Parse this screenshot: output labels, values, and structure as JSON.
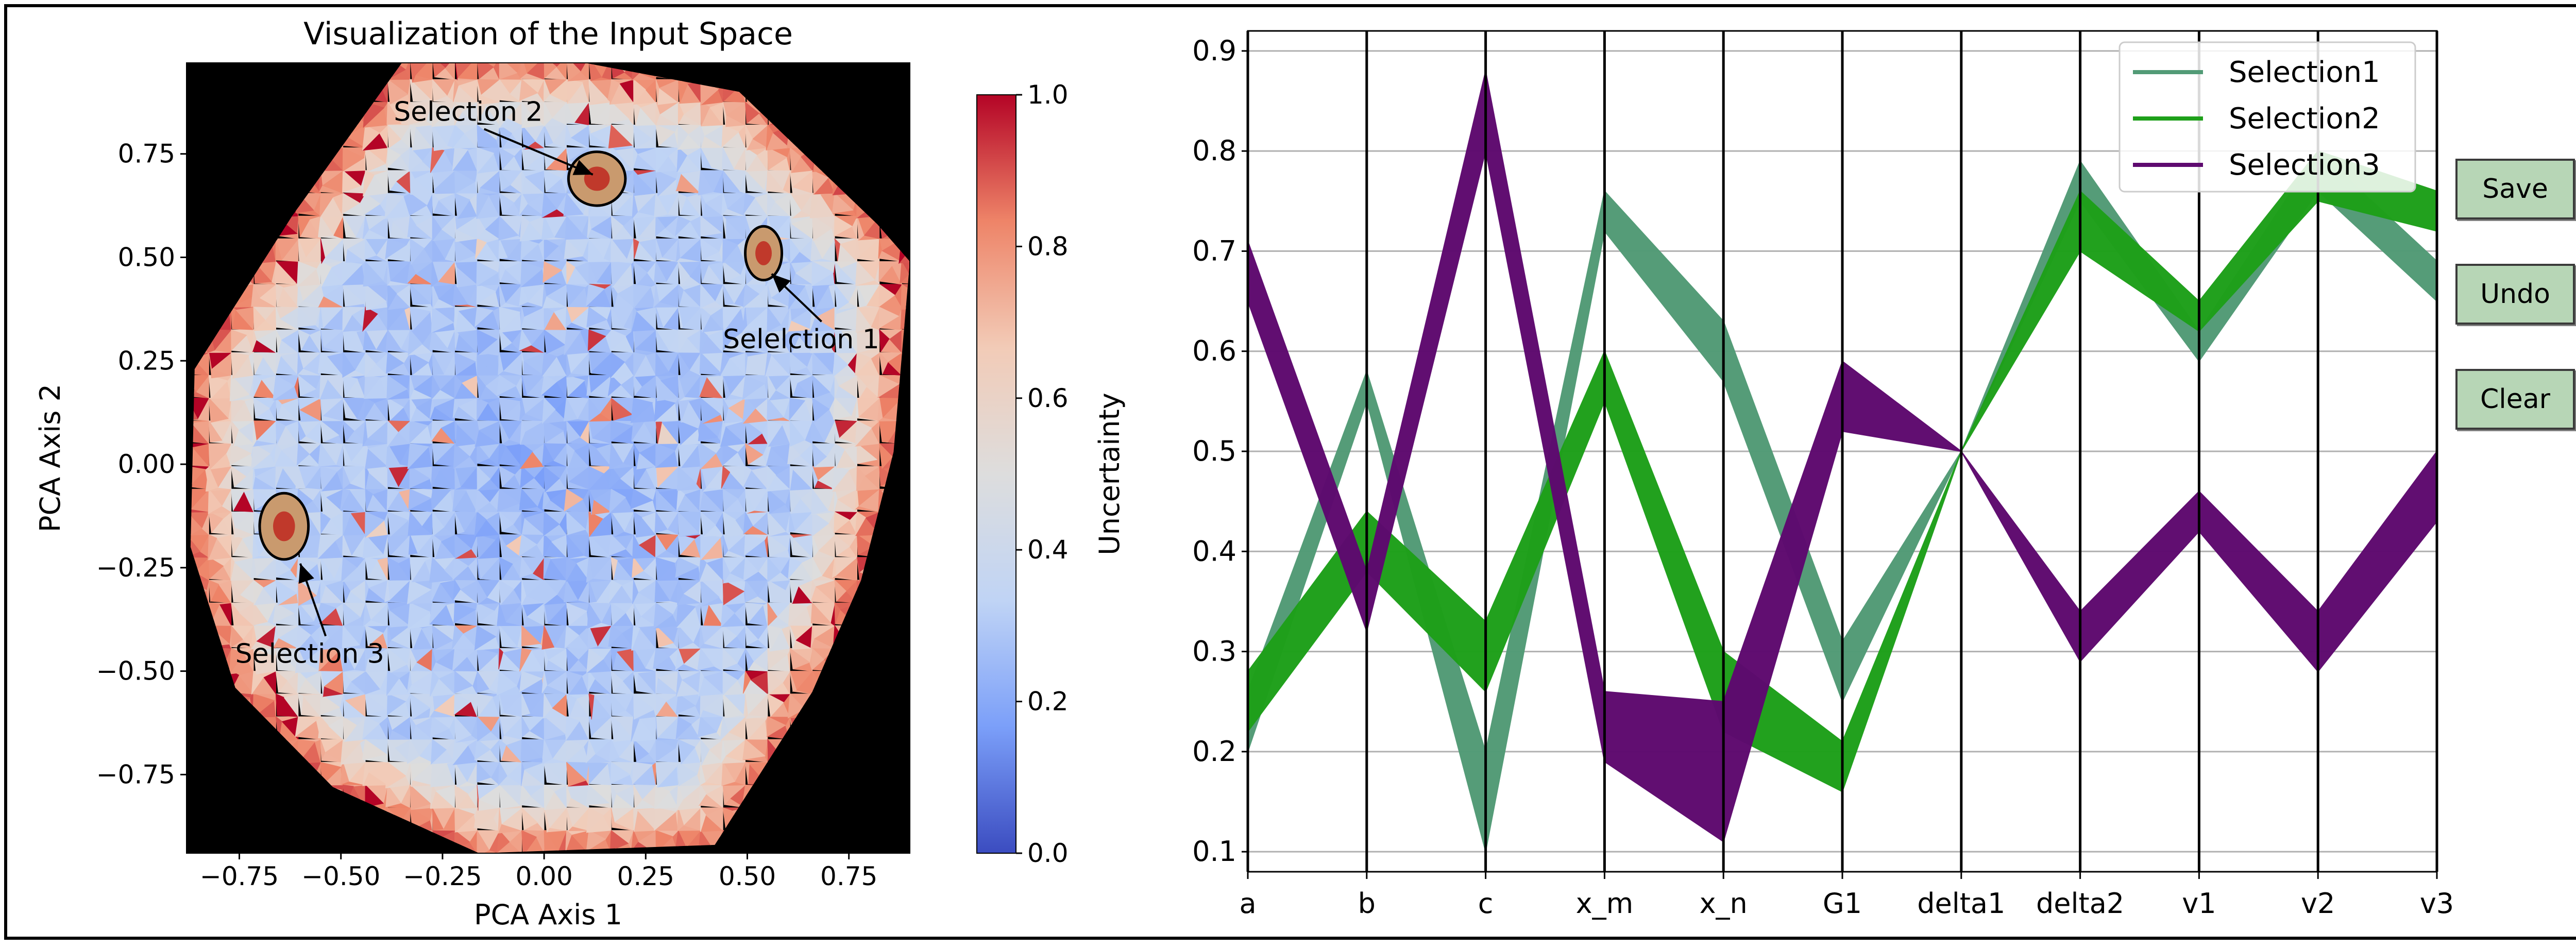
{
  "chart_data": [
    {
      "type": "heatmap",
      "title": "Visualization of the Input Space",
      "xlabel": "PCA Axis 1",
      "ylabel": "PCA Axis 2",
      "xlim": [
        -0.88,
        0.9
      ],
      "ylim": [
        -0.94,
        0.97
      ],
      "x_ticks": [
        -0.75,
        -0.5,
        -0.25,
        0.0,
        0.25,
        0.5,
        0.75
      ],
      "x_tick_labels": [
        "−0.75",
        "−0.50",
        "−0.25",
        "0.00",
        "0.25",
        "0.50",
        "0.75"
      ],
      "y_ticks": [
        -0.75,
        -0.5,
        -0.25,
        0.0,
        0.25,
        0.5,
        0.75
      ],
      "y_tick_labels": [
        "−0.75",
        "−0.50",
        "−0.25",
        "0.00",
        "0.25",
        "0.50",
        "0.75"
      ],
      "colorbar": {
        "label": "Uncertainty",
        "range": [
          0.0,
          1.0
        ],
        "ticks": [
          0.0,
          0.2,
          0.4,
          0.6,
          0.8,
          1.0
        ],
        "tick_labels": [
          "0.0",
          "0.2",
          "0.4",
          "0.6",
          "0.8",
          "1.0"
        ],
        "colormap": "coolwarm",
        "colors": [
          "#3b4cc0",
          "#7b9ff9",
          "#c0d4f5",
          "#dddddd",
          "#f2cbb7",
          "#ee8468",
          "#b40426"
        ]
      },
      "background_color": "#000000",
      "hull": [
        [
          -0.35,
          0.97
        ],
        [
          0.1,
          0.97
        ],
        [
          0.48,
          0.9
        ],
        [
          0.82,
          0.58
        ],
        [
          0.9,
          0.49
        ],
        [
          0.86,
          0.03
        ],
        [
          0.78,
          -0.28
        ],
        [
          0.66,
          -0.55
        ],
        [
          0.42,
          -0.92
        ],
        [
          -0.16,
          -0.94
        ],
        [
          -0.52,
          -0.78
        ],
        [
          -0.76,
          -0.54
        ],
        [
          -0.87,
          -0.2
        ],
        [
          -0.86,
          0.23
        ],
        [
          -0.62,
          0.6
        ]
      ],
      "annotations": [
        {
          "text": "Selection 2",
          "text_at": [
            -0.37,
            0.83
          ],
          "arrow_to": [
            0.12,
            0.7
          ]
        },
        {
          "text": "Selelction 1",
          "text_at": [
            0.44,
            0.28
          ],
          "arrow_to": [
            0.56,
            0.46
          ]
        },
        {
          "text": "Selection 3",
          "text_at": [
            -0.76,
            -0.48
          ],
          "arrow_to": [
            -0.6,
            -0.24
          ]
        }
      ],
      "selection_regions": [
        {
          "name": "Selection 2",
          "center": [
            0.13,
            0.69
          ],
          "radius": [
            0.07,
            0.065
          ]
        },
        {
          "name": "Selelction 1",
          "center": [
            0.54,
            0.51
          ],
          "radius": [
            0.045,
            0.065
          ]
        },
        {
          "name": "Selection 3",
          "center": [
            -0.64,
            -0.15
          ],
          "radius": [
            0.06,
            0.08
          ]
        }
      ]
    },
    {
      "type": "line",
      "subtype": "parallel_coordinates",
      "axes": [
        "a",
        "b",
        "c",
        "x_m",
        "x_n",
        "G1",
        "delta1",
        "delta2",
        "v1",
        "v2",
        "v3"
      ],
      "ylim": [
        0.08,
        0.92
      ],
      "y_ticks": [
        0.1,
        0.2,
        0.3,
        0.4,
        0.5,
        0.6,
        0.7,
        0.8,
        0.9
      ],
      "y_tick_labels": [
        "0.1",
        "0.2",
        "0.3",
        "0.4",
        "0.5",
        "0.6",
        "0.7",
        "0.8",
        "0.9"
      ],
      "grid": true,
      "legend_position": "top-right",
      "series": [
        {
          "name": "Selection1",
          "color": "#529b76",
          "lower": [
            0.2,
            0.55,
            0.1,
            0.72,
            0.57,
            0.25,
            0.5,
            0.75,
            0.59,
            0.76,
            0.65
          ],
          "upper": [
            0.26,
            0.58,
            0.2,
            0.76,
            0.63,
            0.31,
            0.5,
            0.79,
            0.62,
            0.8,
            0.69
          ]
        },
        {
          "name": "Selection2",
          "color": "#1ea01a",
          "lower": [
            0.22,
            0.38,
            0.26,
            0.55,
            0.22,
            0.16,
            0.5,
            0.7,
            0.62,
            0.75,
            0.72
          ],
          "upper": [
            0.28,
            0.44,
            0.33,
            0.6,
            0.3,
            0.21,
            0.5,
            0.76,
            0.65,
            0.8,
            0.76
          ]
        },
        {
          "name": "Selection3",
          "color": "#5e0a6f",
          "lower": [
            0.65,
            0.32,
            0.8,
            0.19,
            0.11,
            0.52,
            0.5,
            0.29,
            0.42,
            0.28,
            0.43
          ],
          "upper": [
            0.71,
            0.38,
            0.88,
            0.26,
            0.25,
            0.59,
            0.5,
            0.34,
            0.46,
            0.34,
            0.5
          ]
        }
      ]
    }
  ],
  "buttons": {
    "save": "Save",
    "undo": "Undo",
    "clear": "Clear"
  }
}
